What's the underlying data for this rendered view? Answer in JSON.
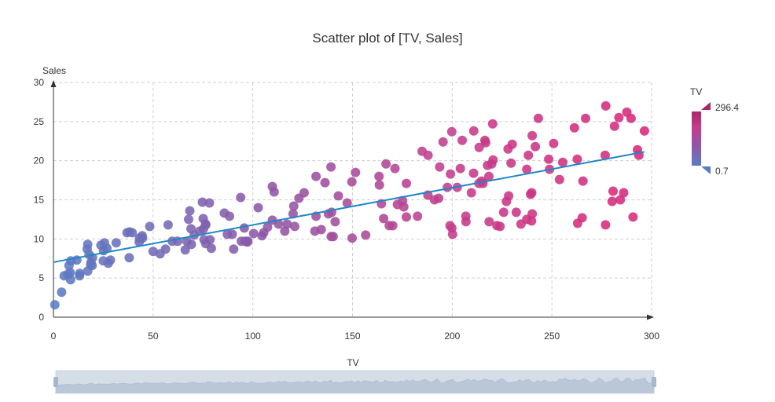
{
  "chart_data": {
    "type": "scatter",
    "title": "Scatter plot of [TV, Sales]",
    "xlabel": "TV",
    "ylabel": "Sales",
    "xlim": [
      0,
      300
    ],
    "ylim": [
      0,
      30
    ],
    "x_ticks": [
      "0",
      "50",
      "100",
      "150",
      "200",
      "250",
      "300"
    ],
    "y_ticks": [
      "0",
      "5",
      "10",
      "15",
      "20",
      "25",
      "30"
    ],
    "grid": true,
    "colormap": {
      "name": "TV",
      "min": 0.7,
      "max": 296.4,
      "min_label": "0.7",
      "max_label": "296.4",
      "colors": [
        "#5b7cc4",
        "#8a5aa8",
        "#c33d8c",
        "#d8287a"
      ]
    },
    "trendline": {
      "x": [
        0,
        296.4
      ],
      "y": [
        7.03,
        21.13
      ],
      "color": "#1f88c8"
    },
    "points": [
      [
        0.7,
        1.6
      ],
      [
        4.1,
        3.2
      ],
      [
        5.4,
        5.3
      ],
      [
        7.3,
        5.5
      ],
      [
        7.8,
        6.6
      ],
      [
        8.4,
        5.7
      ],
      [
        8.6,
        4.8
      ],
      [
        8.7,
        7.2
      ],
      [
        11.7,
        7.3
      ],
      [
        13.1,
        5.3
      ],
      [
        13.2,
        5.6
      ],
      [
        16.9,
        8.7
      ],
      [
        17.2,
        9.3
      ],
      [
        17.2,
        5.9
      ],
      [
        17.9,
        8.0
      ],
      [
        18.7,
        6.7
      ],
      [
        18.8,
        7.0
      ],
      [
        19.4,
        6.6
      ],
      [
        19.6,
        7.6
      ],
      [
        23.8,
        9.2
      ],
      [
        25.0,
        7.2
      ],
      [
        25.1,
        8.5
      ],
      [
        25.6,
        9.5
      ],
      [
        26.8,
        8.8
      ],
      [
        27.5,
        6.9
      ],
      [
        28.6,
        7.3
      ],
      [
        31.5,
        9.5
      ],
      [
        36.9,
        10.8
      ],
      [
        38.0,
        7.6
      ],
      [
        38.2,
        10.9
      ],
      [
        39.5,
        10.8
      ],
      [
        43.0,
        9.6
      ],
      [
        43.1,
        10.1
      ],
      [
        44.5,
        10.4
      ],
      [
        44.7,
        10.1
      ],
      [
        48.3,
        11.6
      ],
      [
        50.0,
        8.4
      ],
      [
        53.5,
        8.1
      ],
      [
        56.2,
        8.7
      ],
      [
        57.5,
        11.8
      ],
      [
        59.6,
        9.7
      ],
      [
        62.3,
        9.7
      ],
      [
        66.1,
        8.6
      ],
      [
        66.9,
        9.7
      ],
      [
        67.8,
        12.5
      ],
      [
        68.4,
        13.6
      ],
      [
        69.0,
        11.3
      ],
      [
        69.2,
        9.3
      ],
      [
        70.6,
        10.5
      ],
      [
        73.4,
        11.0
      ],
      [
        74.7,
        14.7
      ],
      [
        75.1,
        12.6
      ],
      [
        75.3,
        11.3
      ],
      [
        75.5,
        9.9
      ],
      [
        76.3,
        11.9
      ],
      [
        76.4,
        9.4
      ],
      [
        76.4,
        11.8
      ],
      [
        78.2,
        14.6
      ],
      [
        79.2,
        8.8
      ],
      [
        85.7,
        13.3
      ],
      [
        87.2,
        10.6
      ],
      [
        88.3,
        12.9
      ],
      [
        89.7,
        10.6
      ],
      [
        90.4,
        8.7
      ],
      [
        93.9,
        15.3
      ],
      [
        95.7,
        11.4
      ],
      [
        96.2,
        9.7
      ],
      [
        97.2,
        9.6
      ],
      [
        97.5,
        9.7
      ],
      [
        100.4,
        10.7
      ],
      [
        102.7,
        14.0
      ],
      [
        104.6,
        10.4
      ],
      [
        107.4,
        11.5
      ],
      [
        109.8,
        16.7
      ],
      [
        109.8,
        12.4
      ],
      [
        110.7,
        16.0
      ],
      [
        112.9,
        11.9
      ],
      [
        116.0,
        11.0
      ],
      [
        117.2,
        11.9
      ],
      [
        120.2,
        13.2
      ],
      [
        120.5,
        14.2
      ],
      [
        121.0,
        11.6
      ],
      [
        123.1,
        15.2
      ],
      [
        125.7,
        15.9
      ],
      [
        131.1,
        11.0
      ],
      [
        131.7,
        18.0
      ],
      [
        131.7,
        12.9
      ],
      [
        134.3,
        11.2
      ],
      [
        136.2,
        17.2
      ],
      [
        137.9,
        13.2
      ],
      [
        139.2,
        19.2
      ],
      [
        139.3,
        10.3
      ],
      [
        139.5,
        13.4
      ],
      [
        140.3,
        10.3
      ],
      [
        141.3,
        12.2
      ],
      [
        142.9,
        15.5
      ],
      [
        147.3,
        14.6
      ],
      [
        149.7,
        17.3
      ],
      [
        149.8,
        10.1
      ],
      [
        151.5,
        18.5
      ],
      [
        156.6,
        10.5
      ],
      [
        163.3,
        18.0
      ],
      [
        163.5,
        16.9
      ],
      [
        164.5,
        14.5
      ],
      [
        165.6,
        12.6
      ],
      [
        166.8,
        19.6
      ],
      [
        168.4,
        11.7
      ],
      [
        170.2,
        11.7
      ],
      [
        171.3,
        19.0
      ],
      [
        172.5,
        14.4
      ],
      [
        175.1,
        14.9
      ],
      [
        175.7,
        14.1
      ],
      [
        177.0,
        12.8
      ],
      [
        177.0,
        17.1
      ],
      [
        182.6,
        12.9
      ],
      [
        184.9,
        21.2
      ],
      [
        187.8,
        15.6
      ],
      [
        187.9,
        20.7
      ],
      [
        191.1,
        15.0
      ],
      [
        193.2,
        15.2
      ],
      [
        193.7,
        19.2
      ],
      [
        195.4,
        22.4
      ],
      [
        197.6,
        16.6
      ],
      [
        198.9,
        11.7
      ],
      [
        199.1,
        18.3
      ],
      [
        199.8,
        23.7
      ],
      [
        199.8,
        11.4
      ],
      [
        200.2,
        10.6
      ],
      [
        202.5,
        16.6
      ],
      [
        204.1,
        19.0
      ],
      [
        205.0,
        22.6
      ],
      [
        206.8,
        12.9
      ],
      [
        206.9,
        12.2
      ],
      [
        209.6,
        15.9
      ],
      [
        210.7,
        18.4
      ],
      [
        210.8,
        23.8
      ],
      [
        213.4,
        17.1
      ],
      [
        213.5,
        21.7
      ],
      [
        214.7,
        17.4
      ],
      [
        215.4,
        17.1
      ],
      [
        216.4,
        22.6
      ],
      [
        216.8,
        22.3
      ],
      [
        217.7,
        19.4
      ],
      [
        218.4,
        18.0
      ],
      [
        218.5,
        12.2
      ],
      [
        219.8,
        19.6
      ],
      [
        220.3,
        24.7
      ],
      [
        220.5,
        20.1
      ],
      [
        222.4,
        11.7
      ],
      [
        224.0,
        11.6
      ],
      [
        225.8,
        13.4
      ],
      [
        227.2,
        14.8
      ],
      [
        228.0,
        21.5
      ],
      [
        228.3,
        15.5
      ],
      [
        229.5,
        19.7
      ],
      [
        230.1,
        22.1
      ],
      [
        232.1,
        13.4
      ],
      [
        234.5,
        11.9
      ],
      [
        237.4,
        18.9
      ],
      [
        237.4,
        12.5
      ],
      [
        238.2,
        20.7
      ],
      [
        239.3,
        15.7
      ],
      [
        239.8,
        12.3
      ],
      [
        239.9,
        15.9
      ],
      [
        240.1,
        13.2
      ],
      [
        240.1,
        23.2
      ],
      [
        241.7,
        21.8
      ],
      [
        243.2,
        25.4
      ],
      [
        248.4,
        20.2
      ],
      [
        248.8,
        18.9
      ],
      [
        250.9,
        22.2
      ],
      [
        253.8,
        17.6
      ],
      [
        255.4,
        19.8
      ],
      [
        261.3,
        24.2
      ],
      [
        262.7,
        20.2
      ],
      [
        262.9,
        12.0
      ],
      [
        265.2,
        12.7
      ],
      [
        265.6,
        17.4
      ],
      [
        266.9,
        25.4
      ],
      [
        276.7,
        20.7
      ],
      [
        276.9,
        11.8
      ],
      [
        280.2,
        14.8
      ],
      [
        280.7,
        16.1
      ],
      [
        281.4,
        24.4
      ],
      [
        283.6,
        25.5
      ],
      [
        284.3,
        15.0
      ],
      [
        286.0,
        15.9
      ],
      [
        287.6,
        26.2
      ],
      [
        289.7,
        25.4
      ],
      [
        290.7,
        12.8
      ],
      [
        292.9,
        21.4
      ],
      [
        293.6,
        20.7
      ],
      [
        296.4,
        23.8
      ],
      [
        277.0,
        27.0
      ],
      [
        94.2,
        9.7
      ],
      [
        78.5,
        9.9
      ],
      [
        105.5,
        10.8
      ]
    ]
  }
}
